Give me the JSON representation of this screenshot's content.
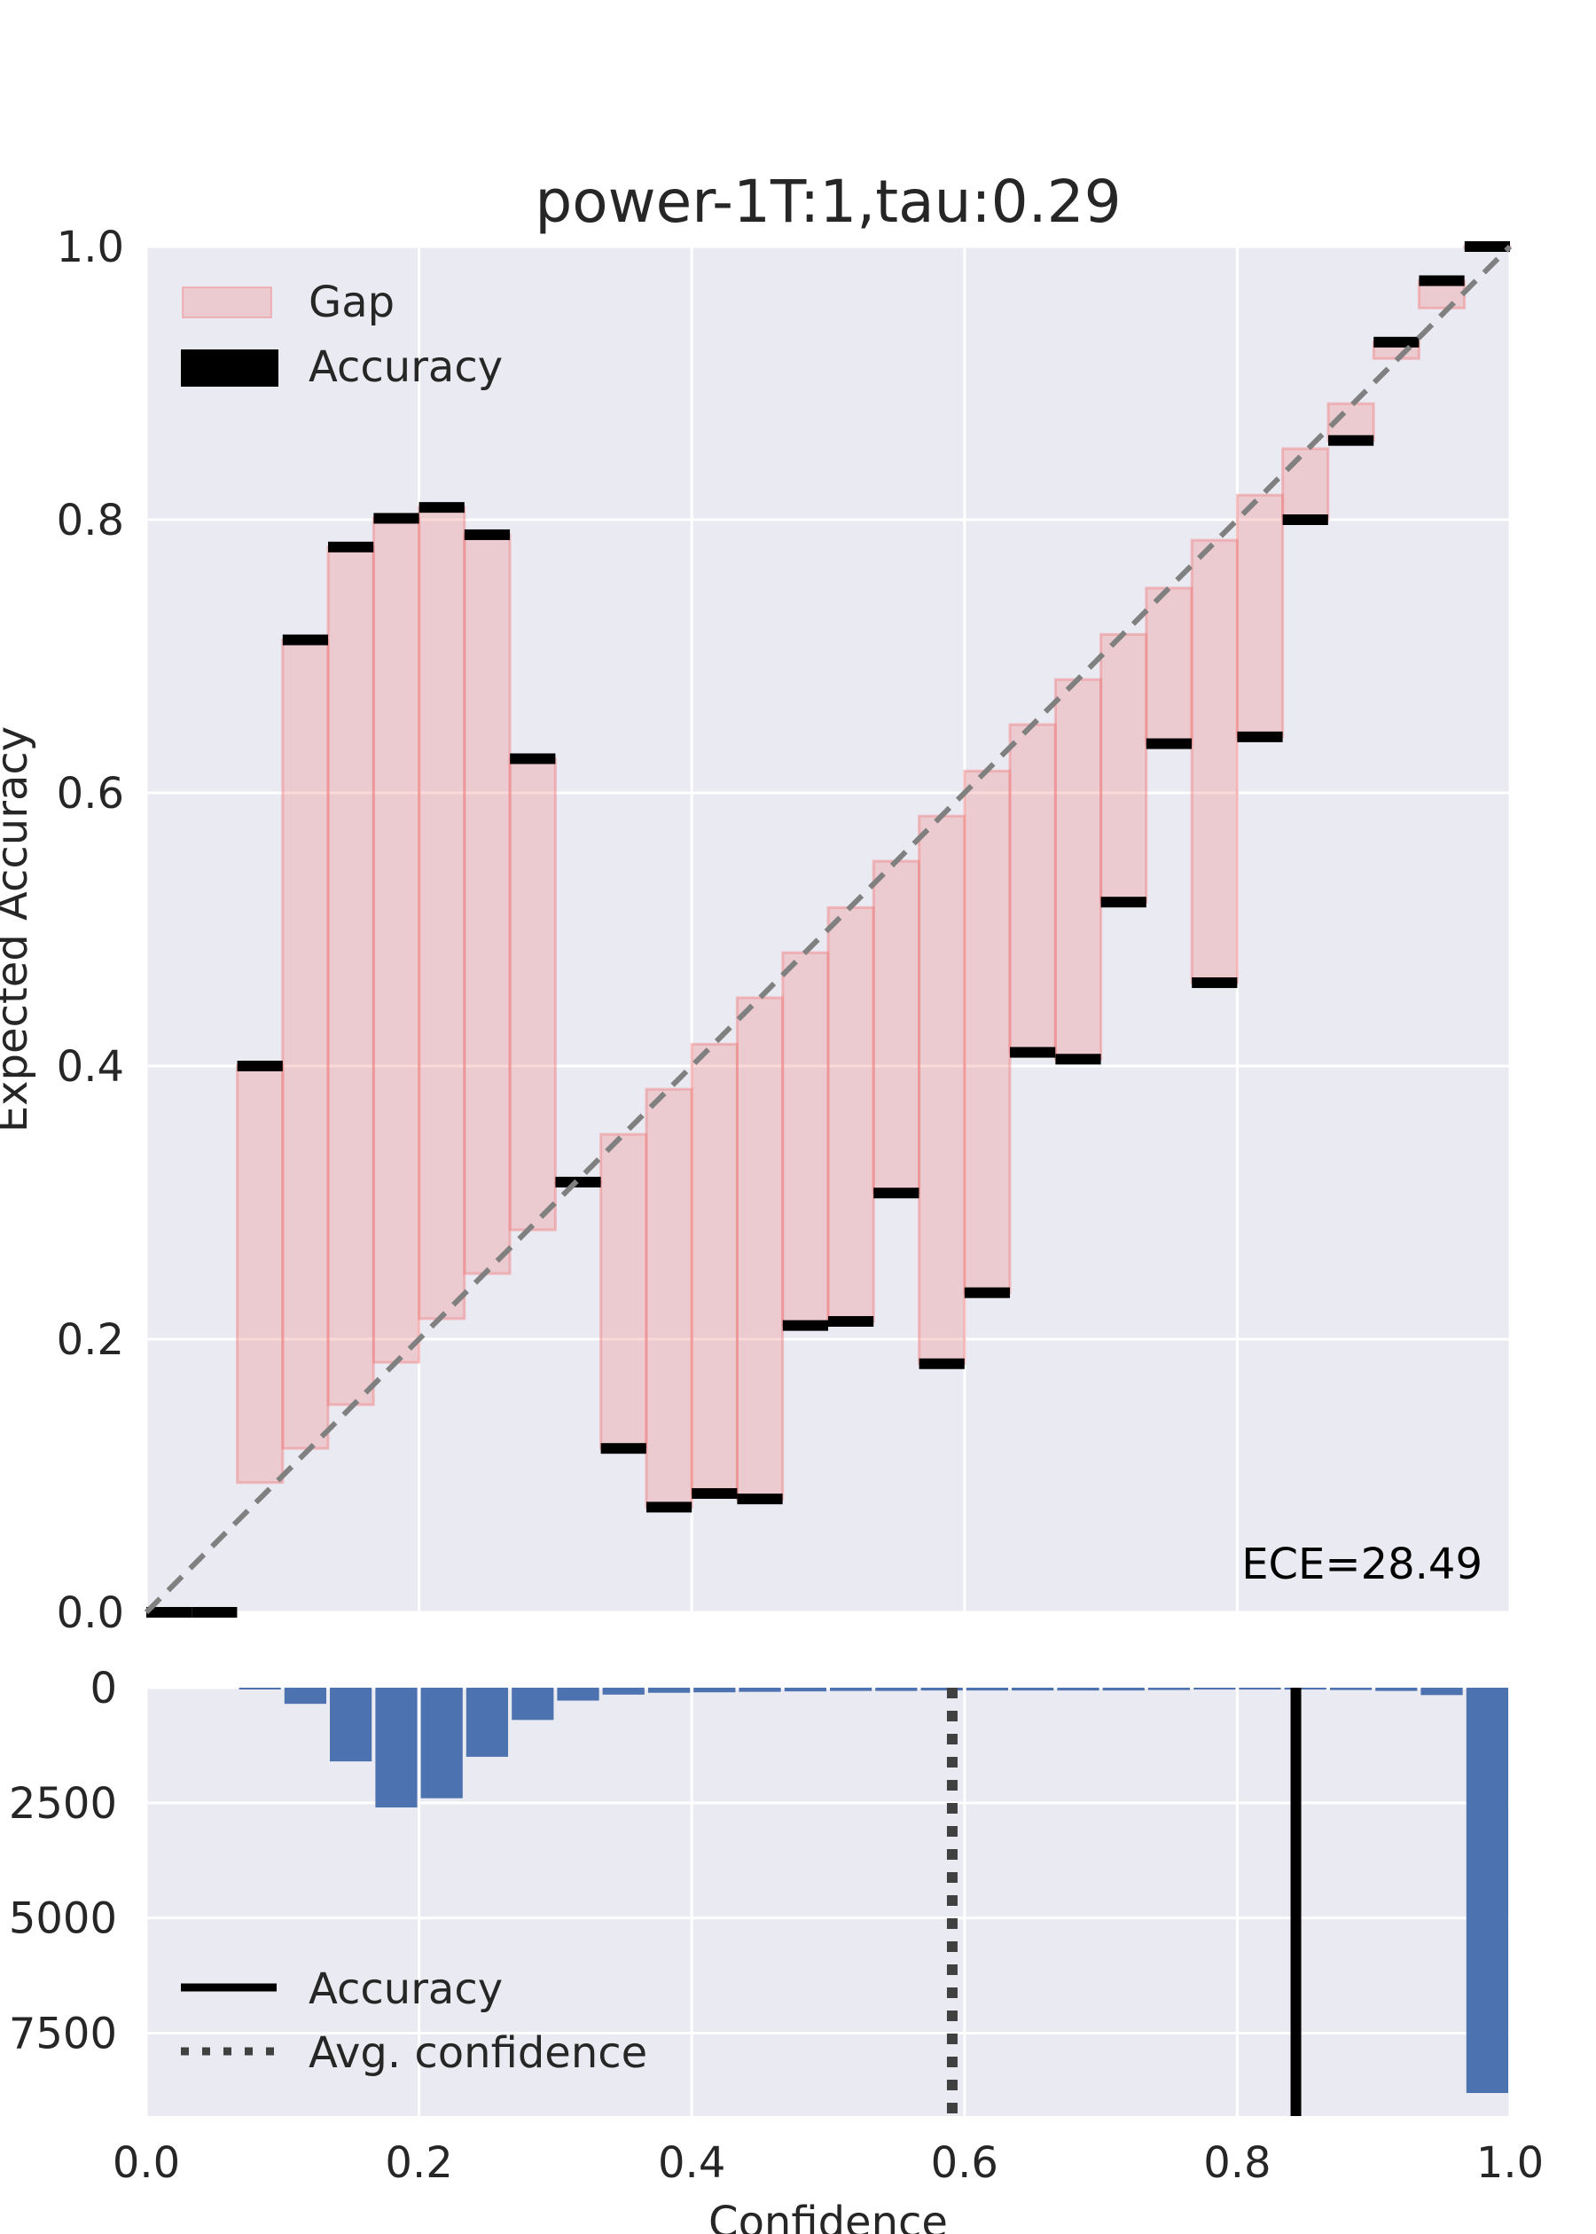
{
  "colors": {
    "background": "#eaeaf2",
    "grid": "#ffffff",
    "gap_fill": "#f08080",
    "gap_edge": "#f08080",
    "accuracy": "#000000",
    "diagonal": "#808080",
    "histogram": "#4c72b0",
    "tick_text": "#262626"
  },
  "chart_data": [
    {
      "type": "bar",
      "subtype": "reliability-diagram",
      "title": "power-1T:1,tau:0.29",
      "xlabel": "",
      "ylabel": "Expected Accuracy",
      "xlim": [
        0,
        1
      ],
      "ylim": [
        0,
        1
      ],
      "x_ticks": [
        "0.0",
        "0.2",
        "0.4",
        "0.6",
        "0.8",
        "1.0"
      ],
      "y_ticks": [
        "0.0",
        "0.2",
        "0.4",
        "0.6",
        "0.8",
        "1.0"
      ],
      "grid": true,
      "bin_width": 0.0333,
      "bin_starts": [
        0.0,
        0.0333,
        0.0667,
        0.1,
        0.1333,
        0.1667,
        0.2,
        0.2333,
        0.2667,
        0.3,
        0.3333,
        0.3667,
        0.4,
        0.4333,
        0.4667,
        0.5,
        0.5333,
        0.5667,
        0.6,
        0.6333,
        0.6667,
        0.7,
        0.7333,
        0.7667,
        0.8,
        0.8333,
        0.8667,
        0.9,
        0.9333,
        0.9667
      ],
      "series": [
        {
          "name": "Accuracy",
          "values": [
            0.0,
            0.0,
            0.4,
            0.712,
            0.78,
            0.801,
            0.809,
            0.789,
            0.625,
            0.315,
            0.12,
            0.077,
            0.087,
            0.083,
            0.21,
            0.213,
            0.307,
            0.182,
            0.234,
            0.41,
            0.405,
            0.52,
            0.636,
            0.461,
            0.641,
            0.8,
            0.858,
            0.93,
            0.975,
            1.0
          ]
        },
        {
          "name": "Gap",
          "values": [
            null,
            null,
            0.095,
            0.12,
            0.152,
            0.183,
            0.215,
            0.248,
            0.28,
            0.315,
            0.35,
            0.383,
            0.416,
            0.45,
            0.483,
            0.516,
            0.55,
            0.583,
            0.616,
            0.65,
            0.683,
            0.716,
            0.75,
            0.785,
            0.818,
            0.852,
            0.885,
            0.918,
            0.955,
            1.0
          ]
        }
      ],
      "legend": {
        "position": "top-left",
        "entries": [
          "Gap",
          "Accuracy"
        ]
      },
      "annotations": [
        "ECE=28.49"
      ]
    },
    {
      "type": "bar",
      "subtype": "confidence-histogram",
      "title": "",
      "xlabel": "Confidence",
      "ylabel": "",
      "xlim": [
        0,
        1
      ],
      "ylim": [
        0,
        9300
      ],
      "y_inverted": true,
      "x_ticks": [
        "0.0",
        "0.2",
        "0.4",
        "0.6",
        "0.8",
        "1.0"
      ],
      "y_ticks": [
        "0",
        "2500",
        "5000",
        "7500"
      ],
      "grid": true,
      "bin_starts": [
        0.0,
        0.0333,
        0.0667,
        0.1,
        0.1333,
        0.1667,
        0.2,
        0.2333,
        0.2667,
        0.3,
        0.3333,
        0.3667,
        0.4,
        0.4333,
        0.4667,
        0.5,
        0.5333,
        0.5667,
        0.6,
        0.6333,
        0.6667,
        0.7,
        0.7333,
        0.7667,
        0.8,
        0.8333,
        0.8667,
        0.9,
        0.9333,
        0.9667
      ],
      "counts": [
        0,
        0,
        30,
        350,
        1600,
        2600,
        2400,
        1500,
        700,
        280,
        150,
        110,
        100,
        90,
        80,
        70,
        70,
        60,
        60,
        60,
        60,
        60,
        50,
        40,
        40,
        40,
        50,
        70,
        160,
        8800
      ],
      "reference_lines": [
        {
          "name": "Accuracy",
          "x": 0.843,
          "style": "solid"
        },
        {
          "name": "Avg. confidence",
          "x": 0.591,
          "style": "dotted"
        }
      ],
      "legend": {
        "position": "bottom-left",
        "entries": [
          "Accuracy",
          "Avg. confidence"
        ]
      }
    }
  ]
}
